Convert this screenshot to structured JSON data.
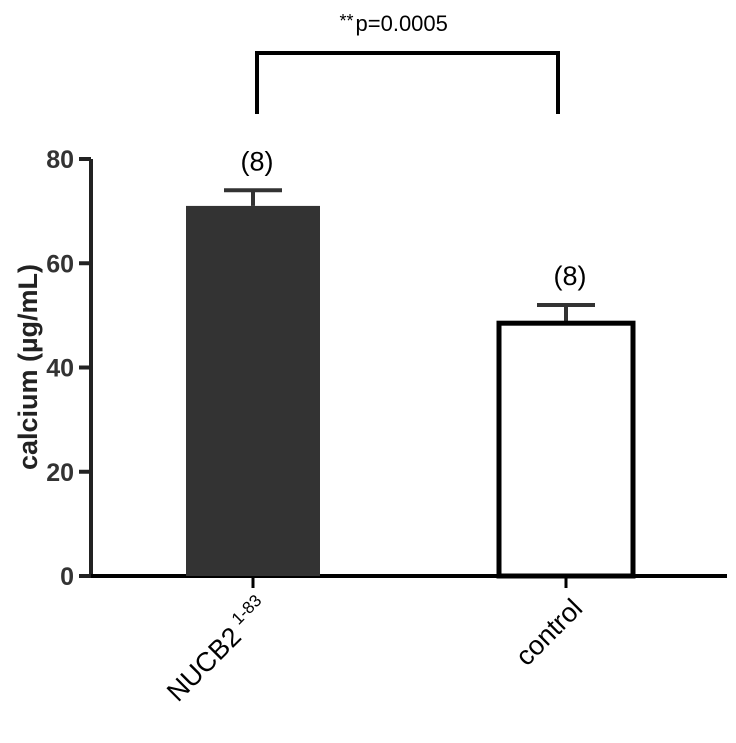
{
  "chart_data": {
    "type": "bar",
    "title": "",
    "xlabel": "",
    "ylabel": "calcium (µg/mL)",
    "ylim": [
      0,
      80
    ],
    "yticks": [
      0,
      20,
      40,
      60,
      80
    ],
    "grid": false,
    "categories": [
      {
        "name": "NUCB2",
        "superscript": "1-83"
      },
      {
        "name": "control",
        "superscript": ""
      }
    ],
    "values": [
      71,
      48.5
    ],
    "errors": [
      3,
      3.5
    ],
    "fills": [
      "#333333",
      "#ffffff"
    ],
    "outline": "#000000",
    "n_labels": [
      "(8)",
      "(8)"
    ],
    "significance": {
      "stars": "**",
      "text": "p=0.0005",
      "between": [
        0,
        1
      ]
    }
  }
}
